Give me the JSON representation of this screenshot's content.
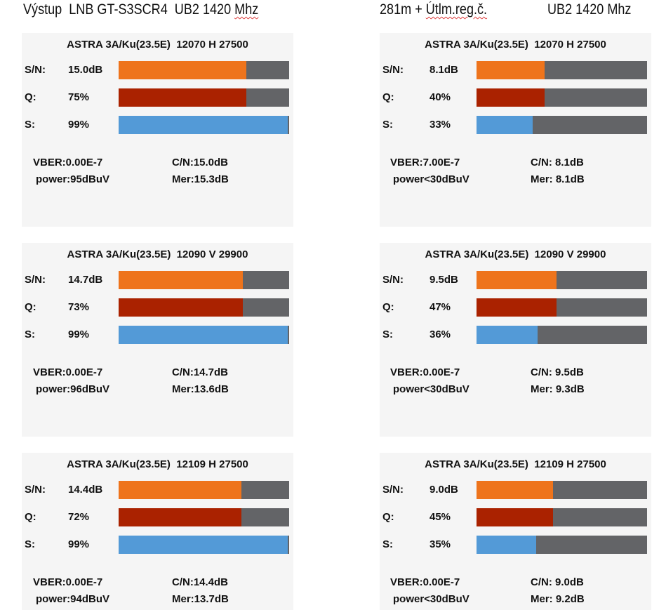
{
  "header": {
    "left_title_prefix": "Výstup  LNB GT-S3SCR4  UB2 1420 ",
    "left_title_misspelled": "Mhz",
    "right_title_prefix": "281m + ",
    "right_title_misspelled": "Útlm.reg.č.",
    "right_title_suffix": "UB2 1420 Mhz"
  },
  "colors": {
    "sn_bar": "#ee741c",
    "q_bar": "#aa2200",
    "s_bar": "#539ad7",
    "bar_bg": "#636467",
    "panel_bg": "#f5f5f5"
  },
  "labels": {
    "sn": "S/N:",
    "q": "Q:",
    "s": "S:"
  },
  "columns": [
    {
      "panels": [
        {
          "title": "ASTRA 3A/Ku(23.5E)  12070 H 27500",
          "sn": "15.0dB",
          "q": "75%",
          "s": "99%",
          "q_pct": 75,
          "s_pct": 99,
          "vber": "VBER:0.00E-7",
          "power": "power:95dBuV",
          "cn": "C/N:15.0dB",
          "mer": "Mer:15.3dB"
        },
        {
          "title": "ASTRA 3A/Ku(23.5E)  12090 V 29900",
          "sn": "14.7dB",
          "q": "73%",
          "s": "99%",
          "q_pct": 73,
          "s_pct": 99,
          "vber": "VBER:0.00E-7",
          "power": "power:96dBuV",
          "cn": "C/N:14.7dB",
          "mer": "Mer:13.6dB"
        },
        {
          "title": "ASTRA 3A/Ku(23.5E)  12109 H 27500",
          "sn": "14.4dB",
          "q": "72%",
          "s": "99%",
          "q_pct": 72,
          "s_pct": 99,
          "vber": "VBER:0.00E-7",
          "power": "power:94dBuV",
          "cn": "C/N:14.4dB",
          "mer": "Mer:13.7dB"
        }
      ]
    },
    {
      "panels": [
        {
          "title": "ASTRA 3A/Ku(23.5E)  12070 H 27500",
          "sn": "8.1dB",
          "q": "40%",
          "s": "33%",
          "q_pct": 40,
          "s_pct": 33,
          "vber": "VBER:7.00E-7",
          "power": "power<30dBuV",
          "cn": "C/N: 8.1dB",
          "mer": "Mer: 8.1dB"
        },
        {
          "title": "ASTRA 3A/Ku(23.5E)  12090 V 29900",
          "sn": "9.5dB",
          "q": "47%",
          "s": "36%",
          "q_pct": 47,
          "s_pct": 36,
          "vber": "VBER:0.00E-7",
          "power": "power<30dBuV",
          "cn": "C/N: 9.5dB",
          "mer": "Mer: 9.3dB"
        },
        {
          "title": "ASTRA 3A/Ku(23.5E)  12109 H 27500",
          "sn": "9.0dB",
          "q": "45%",
          "s": "35%",
          "q_pct": 45,
          "s_pct": 35,
          "vber": "VBER:0.00E-7",
          "power": "power<30dBuV",
          "cn": "C/N: 9.0dB",
          "mer": "Mer: 9.2dB"
        }
      ]
    }
  ]
}
